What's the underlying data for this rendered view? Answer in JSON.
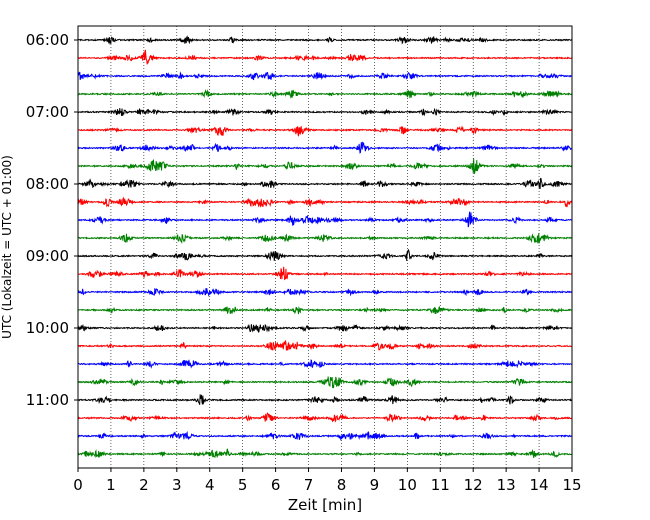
{
  "chart_data": {
    "type": "line",
    "title": "",
    "xlabel": "Zeit  [min]",
    "ylabel": "UTC (Lokalzeit = UTC + 01:00)",
    "xlim": [
      0,
      15
    ],
    "x_ticks": [
      0,
      1,
      2,
      3,
      4,
      5,
      6,
      7,
      8,
      9,
      10,
      11,
      12,
      13,
      14,
      15
    ],
    "y_tick_labels": [
      "06:00",
      "07:00",
      "08:00",
      "09:00",
      "10:00",
      "11:00"
    ],
    "trace_start_time": "06:00",
    "trace_interval_minutes": 15,
    "trace_count": 24,
    "trace_colors": [
      "#000000",
      "#ff0000",
      "#0000ff",
      "#008000"
    ],
    "grid": "vertical dotted at each minute",
    "legend": "none",
    "series": [
      {
        "start": "06:00",
        "color": "#000000"
      },
      {
        "start": "06:15",
        "color": "#ff0000"
      },
      {
        "start": "06:30",
        "color": "#0000ff"
      },
      {
        "start": "06:45",
        "color": "#008000"
      },
      {
        "start": "07:00",
        "color": "#000000"
      },
      {
        "start": "07:15",
        "color": "#ff0000"
      },
      {
        "start": "07:30",
        "color": "#0000ff"
      },
      {
        "start": "07:45",
        "color": "#008000"
      },
      {
        "start": "08:00",
        "color": "#000000"
      },
      {
        "start": "08:15",
        "color": "#ff0000"
      },
      {
        "start": "08:30",
        "color": "#0000ff"
      },
      {
        "start": "08:45",
        "color": "#008000"
      },
      {
        "start": "09:00",
        "color": "#000000"
      },
      {
        "start": "09:15",
        "color": "#ff0000"
      },
      {
        "start": "09:30",
        "color": "#0000ff"
      },
      {
        "start": "09:45",
        "color": "#008000"
      },
      {
        "start": "10:00",
        "color": "#000000"
      },
      {
        "start": "10:15",
        "color": "#ff0000"
      },
      {
        "start": "10:30",
        "color": "#0000ff"
      },
      {
        "start": "10:45",
        "color": "#008000"
      },
      {
        "start": "11:00",
        "color": "#000000"
      },
      {
        "start": "11:15",
        "color": "#ff0000"
      },
      {
        "start": "11:30",
        "color": "#0000ff"
      },
      {
        "start": "11:45",
        "color": "#008000"
      }
    ]
  }
}
